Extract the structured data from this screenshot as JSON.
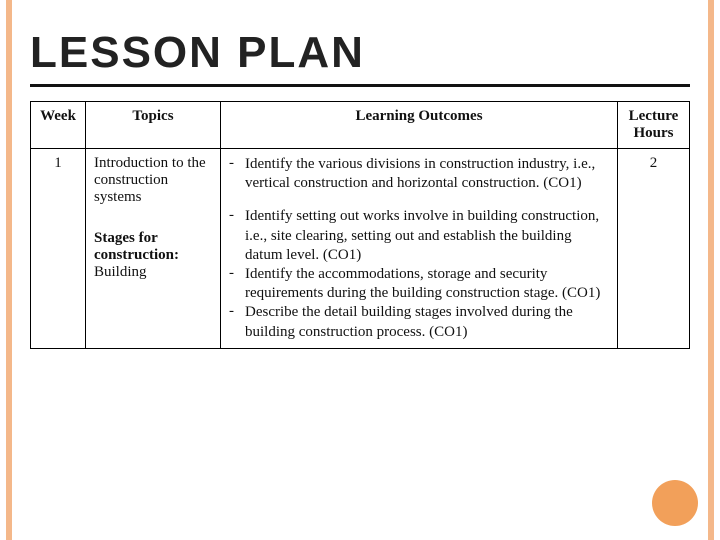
{
  "title": "LESSON PLAN",
  "colors": {
    "accent_bar": "#f4b88a",
    "circle": "#f2a05a",
    "rule": "#111111",
    "text": "#111111",
    "background": "#ffffff"
  },
  "table": {
    "headers": {
      "week": "Week",
      "topics": "Topics",
      "learning_outcomes": "Learning Outcomes",
      "lecture_hours": "Lecture Hours"
    },
    "row": {
      "week": "1",
      "lecture_hours": "2",
      "topics": {
        "t1": "Introduction to the construction systems",
        "t2_strong": "Stages for construction:",
        "t2_rest": "Building"
      },
      "outcomes": {
        "g1": {
          "o1": "Identify the various divisions in construction industry, i.e., vertical construction and horizontal construction. (CO1)"
        },
        "g2": {
          "o1": "Identify setting out works involve in building construction, i.e., site clearing, setting out and establish the building datum level. (CO1)",
          "o2": "Identify the accommodations, storage and security requirements during the building construction stage. (CO1)",
          "o3": "Describe the detail building stages involved during the building construction process. (CO1)"
        }
      }
    }
  }
}
